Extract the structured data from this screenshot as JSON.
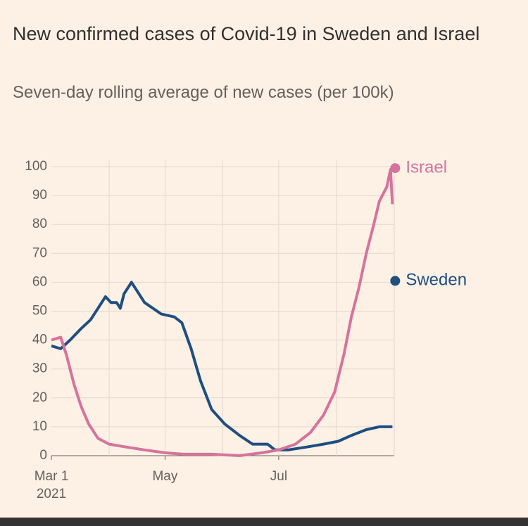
{
  "chart_data": {
    "type": "line",
    "title": "New confirmed cases of Covid-19 in Sweden and Israel",
    "subtitle": "Seven-day rolling average of new cases (per 100k)",
    "xlim": [
      "2021-03-01",
      "2021-09-01"
    ],
    "xticks": [
      {
        "value": "2021-03-01",
        "label": "Mar 1"
      },
      {
        "value": "2021-05-01",
        "label": "May"
      },
      {
        "value": "2021-07-01",
        "label": "Jul"
      }
    ],
    "xgrid": [
      "2021-04-01",
      "2021-05-01",
      "2021-06-01",
      "2021-07-01",
      "2021-08-01",
      "2021-09-01"
    ],
    "year_label": "2021",
    "ylim": [
      0,
      100
    ],
    "yticks": [
      0,
      10,
      20,
      30,
      40,
      50,
      60,
      70,
      80,
      90,
      100
    ],
    "grid": true,
    "series": [
      {
        "name": "Sweden",
        "color": "#1f4e7f",
        "x": [
          "2021-03-01",
          "2021-03-06",
          "2021-03-11",
          "2021-03-17",
          "2021-03-22",
          "2021-03-26",
          "2021-03-30",
          "2021-04-02",
          "2021-04-05",
          "2021-04-07",
          "2021-04-09",
          "2021-04-13",
          "2021-04-20",
          "2021-04-29",
          "2021-05-06",
          "2021-05-10",
          "2021-05-15",
          "2021-05-20",
          "2021-05-26",
          "2021-06-02",
          "2021-06-10",
          "2021-06-17",
          "2021-06-25",
          "2021-06-29",
          "2021-07-06",
          "2021-07-16",
          "2021-07-25",
          "2021-08-02",
          "2021-08-09",
          "2021-08-17",
          "2021-08-24",
          "2021-08-31"
        ],
        "values": [
          38,
          37,
          40,
          44,
          47,
          51,
          55,
          53,
          53,
          51,
          56,
          60,
          53,
          49,
          48,
          46,
          37,
          26,
          16,
          11,
          7,
          4,
          4,
          2,
          2,
          3,
          4,
          5,
          7,
          9,
          10,
          10
        ]
      },
      {
        "name": "Israel",
        "color": "#d6739b",
        "x": [
          "2021-03-01",
          "2021-03-06",
          "2021-03-09",
          "2021-03-13",
          "2021-03-17",
          "2021-03-21",
          "2021-03-26",
          "2021-04-01",
          "2021-04-10",
          "2021-04-20",
          "2021-05-01",
          "2021-05-11",
          "2021-05-26",
          "2021-06-10",
          "2021-06-22",
          "2021-07-01",
          "2021-07-10",
          "2021-07-18",
          "2021-07-25",
          "2021-07-31",
          "2021-08-05",
          "2021-08-09",
          "2021-08-13",
          "2021-08-17",
          "2021-08-21",
          "2021-08-24",
          "2021-08-28",
          "2021-08-30",
          "2021-08-31"
        ],
        "values": [
          40,
          41,
          35,
          25,
          17,
          11,
          6,
          4,
          3,
          2,
          1,
          0.5,
          0.5,
          0,
          1,
          2,
          4,
          8,
          14,
          22,
          35,
          48,
          58,
          70,
          80,
          88,
          93,
          99,
          87
        ]
      }
    ]
  }
}
